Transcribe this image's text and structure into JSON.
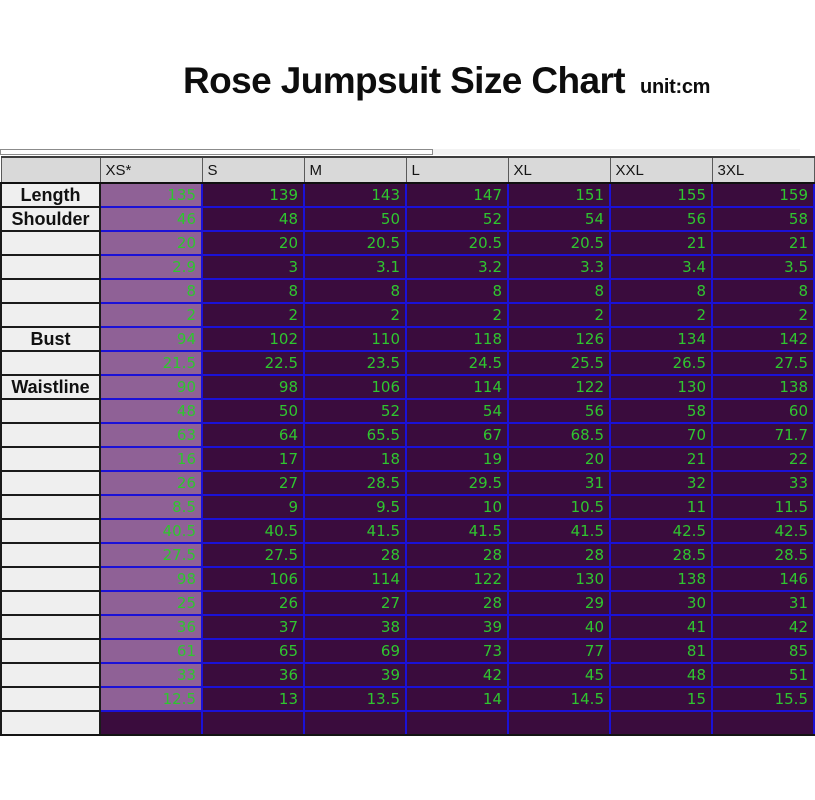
{
  "title": "Rose Jumpsuit Size Chart",
  "unit_label": "unit:cm",
  "colors": {
    "cell_bg": "#3a0c3d",
    "highlight_column_bg": "#8f6196",
    "value_text": "#2fc62f",
    "gridline": "#1b11d6",
    "header_bg": "#d9d9d9",
    "label_bg": "#efefef"
  },
  "chart_data": {
    "type": "table",
    "title": "Rose Jumpsuit Size Chart",
    "unit": "cm",
    "highlighted_column": "XS*",
    "columns": [
      "XS*",
      "S",
      "M",
      "L",
      "XL",
      "XXL",
      "3XL"
    ],
    "corner_label": "",
    "rows": [
      {
        "label": "Length",
        "values": [
          "135",
          "139",
          "143",
          "147",
          "151",
          "155",
          "159"
        ]
      },
      {
        "label": "Shoulder",
        "values": [
          "46",
          "48",
          "50",
          "52",
          "54",
          "56",
          "58"
        ]
      },
      {
        "label": "",
        "values": [
          "20",
          "20",
          "20.5",
          "20.5",
          "20.5",
          "21",
          "21"
        ]
      },
      {
        "label": "",
        "values": [
          "2.9",
          "3",
          "3.1",
          "3.2",
          "3.3",
          "3.4",
          "3.5"
        ]
      },
      {
        "label": "",
        "values": [
          "8",
          "8",
          "8",
          "8",
          "8",
          "8",
          "8"
        ]
      },
      {
        "label": "",
        "values": [
          "2",
          "2",
          "2",
          "2",
          "2",
          "2",
          "2"
        ]
      },
      {
        "label": "Bust",
        "values": [
          "94",
          "102",
          "110",
          "118",
          "126",
          "134",
          "142"
        ]
      },
      {
        "label": "",
        "values": [
          "21.5",
          "22.5",
          "23.5",
          "24.5",
          "25.5",
          "26.5",
          "27.5"
        ]
      },
      {
        "label": "Waistline",
        "values": [
          "90",
          "98",
          "106",
          "114",
          "122",
          "130",
          "138"
        ]
      },
      {
        "label": "",
        "values": [
          "48",
          "50",
          "52",
          "54",
          "56",
          "58",
          "60"
        ]
      },
      {
        "label": "",
        "values": [
          "63",
          "64",
          "65.5",
          "67",
          "68.5",
          "70",
          "71.7"
        ]
      },
      {
        "label": "",
        "values": [
          "16",
          "17",
          "18",
          "19",
          "20",
          "21",
          "22"
        ]
      },
      {
        "label": "",
        "values": [
          "26",
          "27",
          "28.5",
          "29.5",
          "31",
          "32",
          "33"
        ]
      },
      {
        "label": "",
        "values": [
          "8.5",
          "9",
          "9.5",
          "10",
          "10.5",
          "11",
          "11.5"
        ]
      },
      {
        "label": "",
        "values": [
          "40.5",
          "40.5",
          "41.5",
          "41.5",
          "41.5",
          "42.5",
          "42.5"
        ]
      },
      {
        "label": "",
        "values": [
          "27.5",
          "27.5",
          "28",
          "28",
          "28",
          "28.5",
          "28.5"
        ]
      },
      {
        "label": "",
        "values": [
          "98",
          "106",
          "114",
          "122",
          "130",
          "138",
          "146"
        ]
      },
      {
        "label": "",
        "values": [
          "25",
          "26",
          "27",
          "28",
          "29",
          "30",
          "31"
        ]
      },
      {
        "label": "",
        "values": [
          "36",
          "37",
          "38",
          "39",
          "40",
          "41",
          "42"
        ]
      },
      {
        "label": "",
        "values": [
          "61",
          "65",
          "69",
          "73",
          "77",
          "81",
          "85"
        ]
      },
      {
        "label": "",
        "values": [
          "33",
          "36",
          "39",
          "42",
          "45",
          "48",
          "51"
        ]
      },
      {
        "label": "",
        "values": [
          "12.5",
          "13",
          "13.5",
          "14",
          "14.5",
          "15",
          "15.5"
        ]
      },
      {
        "label": "",
        "values": [
          "",
          "",
          "",
          "",
          "",
          "",
          ""
        ]
      }
    ]
  }
}
